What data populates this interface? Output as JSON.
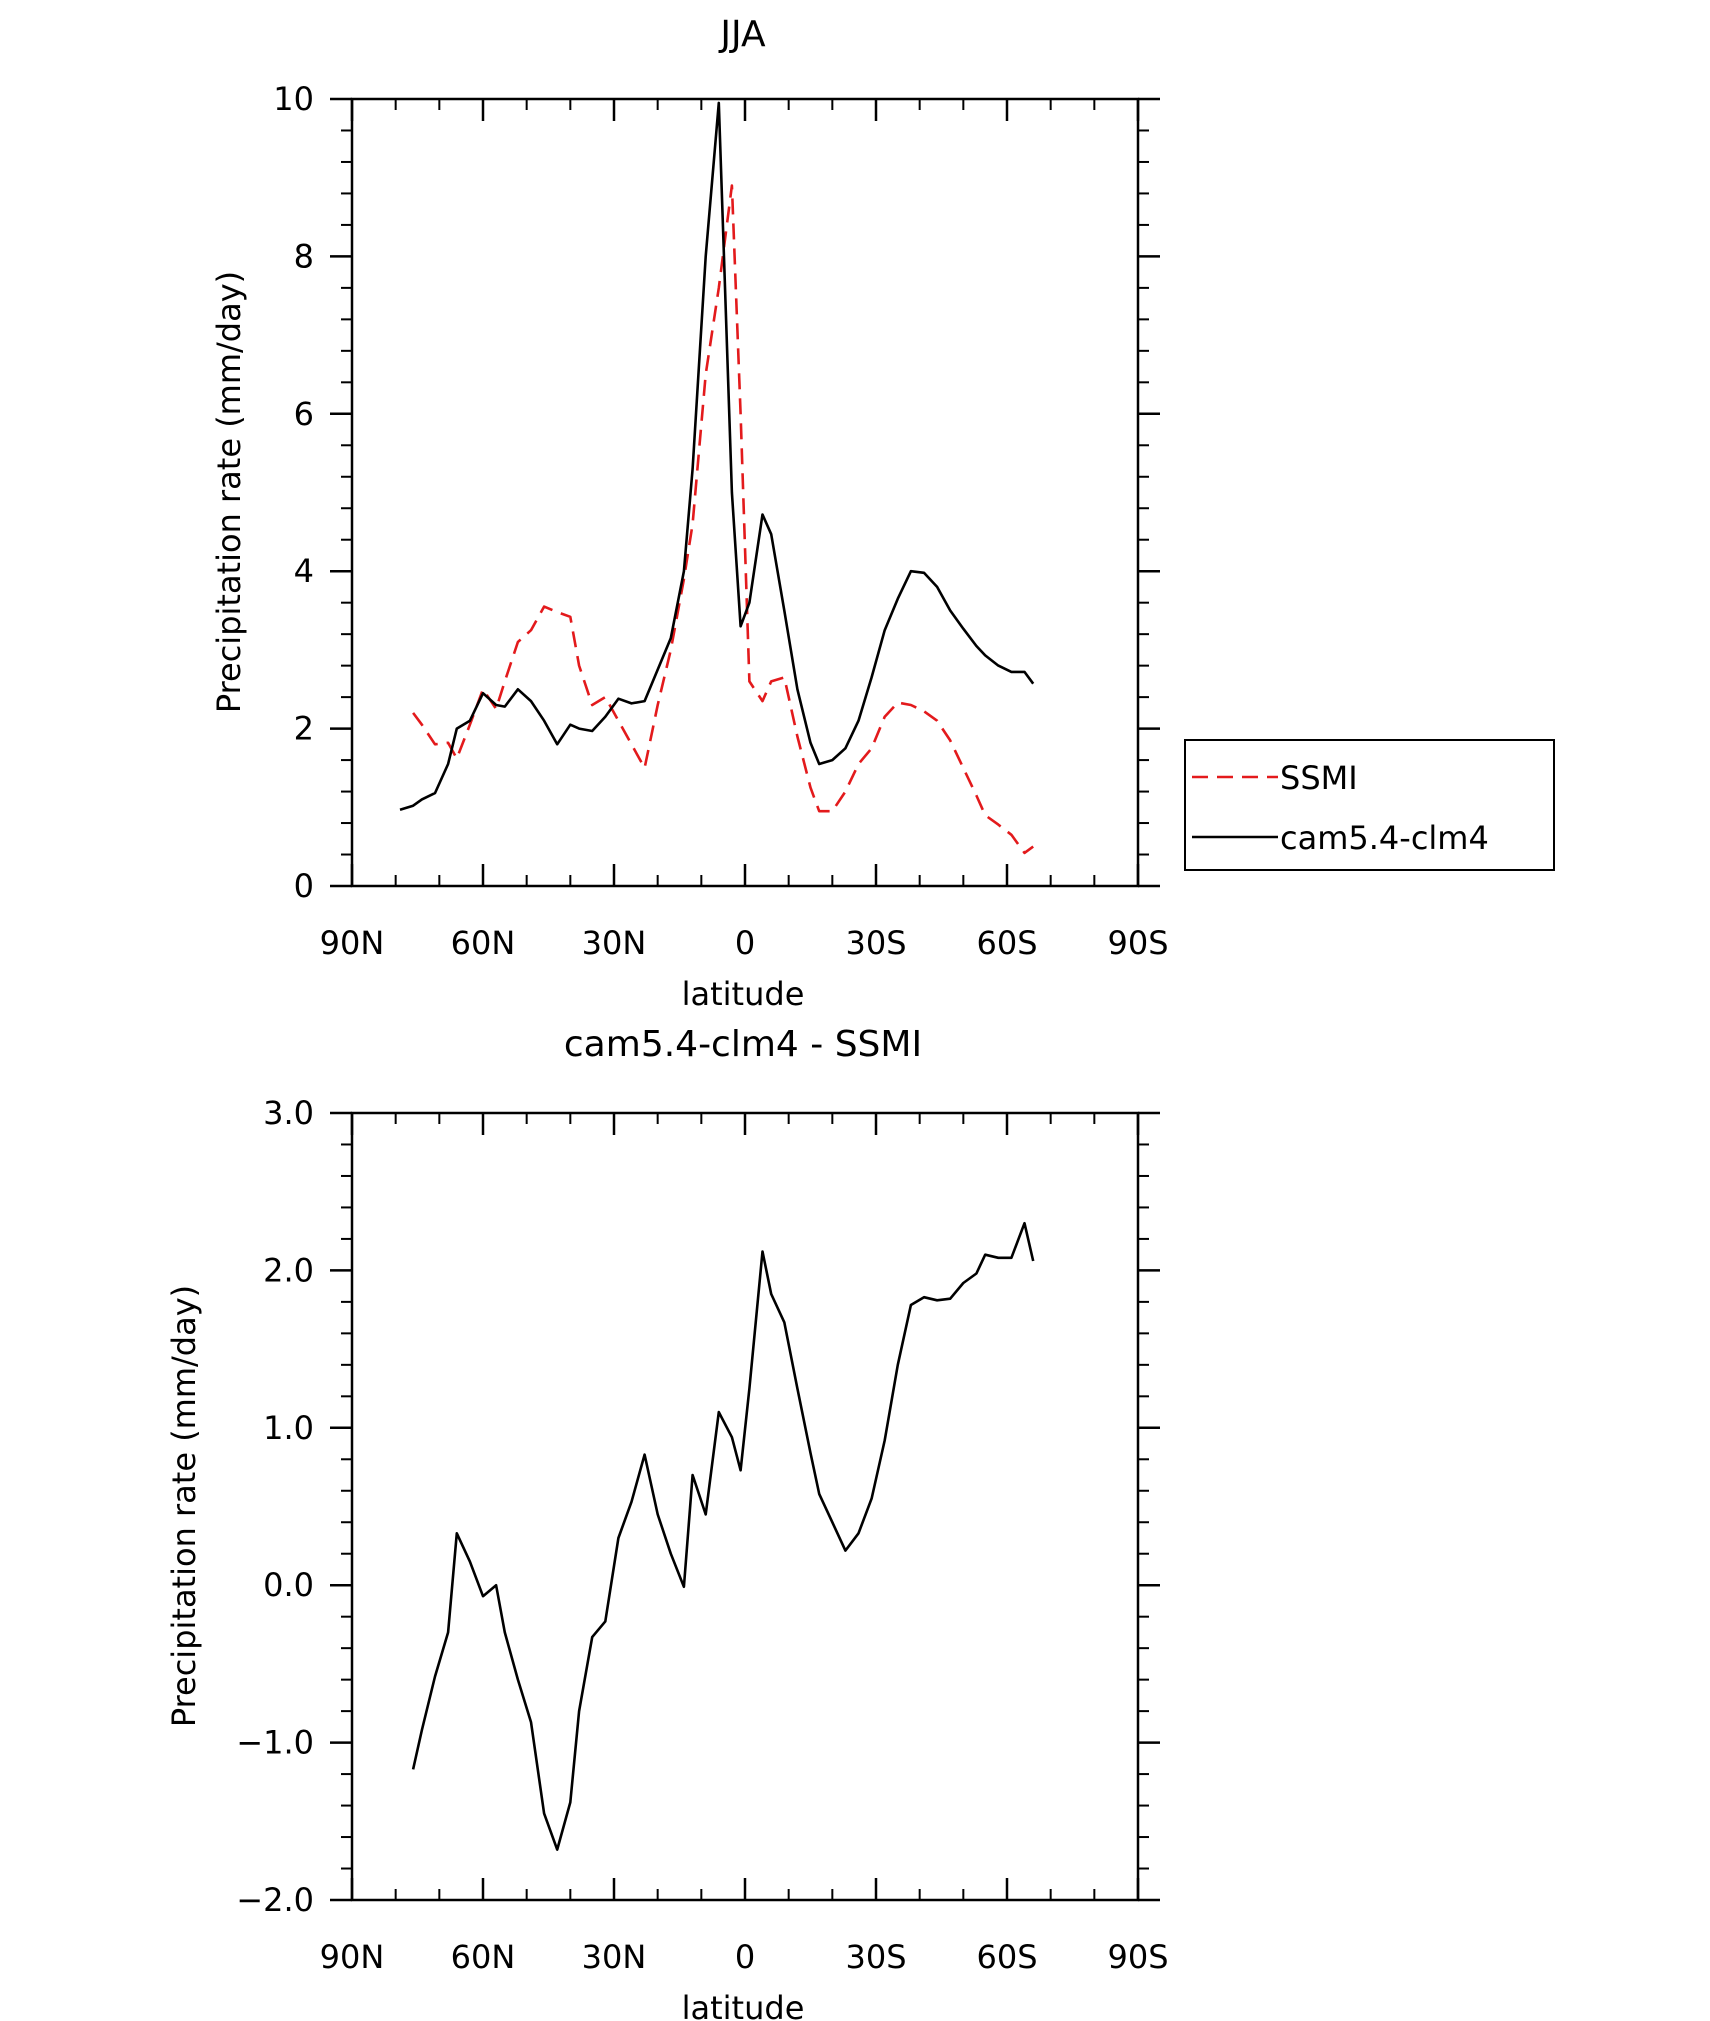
{
  "chart_data": [
    {
      "type": "line",
      "title": "JJA",
      "xlabel": "latitude",
      "ylabel": "Precipitation rate (mm/day)",
      "xlim": [
        90,
        -90
      ],
      "ylim": [
        0,
        10
      ],
      "xticks": [
        90,
        60,
        30,
        0,
        -30,
        -60,
        -90
      ],
      "xtick_labels": [
        "90N",
        "60N",
        "30N",
        "0",
        "30S",
        "60S",
        "90S"
      ],
      "yticks": [
        0,
        2,
        4,
        6,
        8,
        10
      ],
      "ytick_labels": [
        "0",
        "2",
        "4",
        "6",
        "8",
        "10"
      ],
      "legend_position": "right",
      "series": [
        {
          "name": "SSMI",
          "color": "#e31a1c",
          "dash": "dashed",
          "x": [
            76,
            74,
            71,
            68,
            66,
            63,
            60,
            57,
            55,
            52,
            49,
            46,
            43,
            40,
            38,
            35,
            32,
            29,
            26,
            23,
            20,
            17,
            14,
            12,
            9,
            6,
            3,
            1,
            -1,
            -4,
            -6,
            -9,
            -12,
            -15,
            -17,
            -20,
            -23,
            -26,
            -29,
            -32,
            -35,
            -38,
            -41,
            -44,
            -47,
            -50,
            -53,
            -55,
            -58,
            -61,
            -64,
            -66
          ],
          "values": [
            2.2,
            2.05,
            1.8,
            1.82,
            1.62,
            2.05,
            2.5,
            2.25,
            2.6,
            3.1,
            3.25,
            3.55,
            3.48,
            3.42,
            2.8,
            2.3,
            2.4,
            2.1,
            1.8,
            1.5,
            2.3,
            3.0,
            3.9,
            4.6,
            6.5,
            7.6,
            8.9,
            6.0,
            2.6,
            2.35,
            2.6,
            2.65,
            1.9,
            1.25,
            0.95,
            0.95,
            1.2,
            1.55,
            1.75,
            2.15,
            2.33,
            2.3,
            2.22,
            2.1,
            1.85,
            1.5,
            1.15,
            0.9,
            0.78,
            0.65,
            0.42,
            0.5
          ]
        },
        {
          "name": "cam5.4-clm4",
          "color": "#000000",
          "dash": "solid",
          "x": [
            79,
            76,
            74,
            71,
            68,
            66,
            63,
            60,
            57,
            55,
            52,
            49,
            46,
            43,
            40,
            38,
            35,
            32,
            29,
            26,
            23,
            20,
            17,
            14,
            12,
            9,
            6,
            3,
            1,
            -1,
            -4,
            -6,
            -9,
            -12,
            -15,
            -17,
            -20,
            -23,
            -26,
            -29,
            -32,
            -35,
            -38,
            -41,
            -44,
            -47,
            -50,
            -53,
            -55,
            -58,
            -61,
            -64,
            -66
          ],
          "values": [
            0.97,
            1.02,
            1.1,
            1.18,
            1.55,
            2.0,
            2.1,
            2.45,
            2.3,
            2.28,
            2.5,
            2.35,
            2.1,
            1.8,
            2.05,
            2.0,
            1.97,
            2.15,
            2.38,
            2.32,
            2.35,
            2.75,
            3.15,
            4.0,
            5.3,
            8.0,
            9.95,
            5.0,
            3.3,
            3.6,
            4.72,
            4.47,
            3.5,
            2.5,
            1.82,
            1.55,
            1.6,
            1.75,
            2.1,
            2.65,
            3.25,
            3.65,
            4.0,
            3.98,
            3.8,
            3.5,
            3.27,
            3.05,
            2.93,
            2.8,
            2.72,
            2.72,
            2.57
          ]
        }
      ]
    },
    {
      "type": "line",
      "title": "cam5.4-clm4 - SSMI",
      "xlabel": "latitude",
      "ylabel": "Precipitation rate (mm/day)",
      "xlim": [
        90,
        -90
      ],
      "ylim": [
        -2,
        3
      ],
      "xticks": [
        90,
        60,
        30,
        0,
        -30,
        -60,
        -90
      ],
      "xtick_labels": [
        "90N",
        "60N",
        "30N",
        "0",
        "30S",
        "60S",
        "90S"
      ],
      "yticks": [
        -2,
        -1,
        0,
        1,
        2,
        3
      ],
      "ytick_labels": [
        "−2.0",
        "−1.0",
        "0.0",
        "1.0",
        "2.0",
        "3.0"
      ],
      "series": [
        {
          "name": "cam5.4-clm4 - SSMI",
          "color": "#000000",
          "dash": "solid",
          "x": [
            76,
            74,
            71,
            68,
            66,
            63,
            60,
            57,
            55,
            52,
            49,
            46,
            43,
            40,
            38,
            35,
            32,
            29,
            26,
            23,
            20,
            17,
            14,
            12,
            9,
            6,
            3,
            1,
            -1,
            -4,
            -6,
            -9,
            -12,
            -15,
            -17,
            -20,
            -23,
            -26,
            -29,
            -32,
            -35,
            -38,
            -41,
            -44,
            -47,
            -50,
            -53,
            -55,
            -58,
            -61,
            -64,
            -66
          ],
          "values": [
            -1.17,
            -0.92,
            -0.58,
            -0.3,
            0.33,
            0.15,
            -0.07,
            0.0,
            -0.3,
            -0.6,
            -0.87,
            -1.45,
            -1.68,
            -1.38,
            -0.8,
            -0.33,
            -0.23,
            0.3,
            0.53,
            0.83,
            0.45,
            0.2,
            -0.01,
            0.7,
            0.45,
            1.1,
            0.94,
            0.73,
            1.25,
            2.12,
            1.85,
            1.67,
            1.25,
            0.84,
            0.58,
            0.4,
            0.22,
            0.33,
            0.55,
            0.92,
            1.4,
            1.78,
            1.83,
            1.81,
            1.82,
            1.92,
            1.98,
            2.1,
            2.08,
            2.08,
            2.3,
            2.06
          ]
        }
      ]
    }
  ]
}
